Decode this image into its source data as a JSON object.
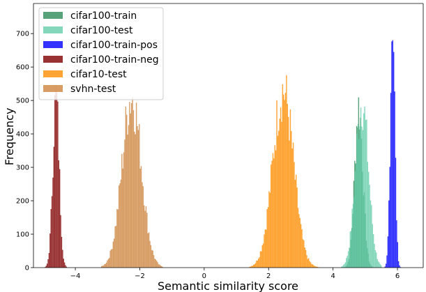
{
  "chart_data": {
    "type": "histogram",
    "xlabel": "Semantic similarity score",
    "ylabel": "Frequency",
    "xlim": [
      -5.3,
      6.8
    ],
    "ylim": [
      0,
      790
    ],
    "xticks": [
      -4,
      -2,
      0,
      2,
      4,
      6
    ],
    "yticks": [
      0,
      100,
      200,
      300,
      400,
      500,
      600,
      700
    ],
    "grid": false,
    "legend_position": "top-left",
    "series": [
      {
        "name": "cifar100-train",
        "color": "#2e8b57",
        "opacity": 0.8,
        "mean": 4.8,
        "std": 0.13,
        "peak": 480,
        "range": [
          4.3,
          5.3
        ]
      },
      {
        "name": "cifar100-test",
        "color": "#66cdaa",
        "opacity": 0.8,
        "mean": 4.9,
        "std": 0.2,
        "peak": 495,
        "range": [
          4.25,
          5.5
        ]
      },
      {
        "name": "cifar100-train-pos",
        "color": "#0000ff",
        "opacity": 0.8,
        "mean": 5.85,
        "std": 0.07,
        "peak": 760,
        "range": [
          5.6,
          6.2
        ]
      },
      {
        "name": "cifar100-train-neg",
        "color": "#800000",
        "opacity": 0.8,
        "mean": -4.6,
        "std": 0.1,
        "peak": 510,
        "range": [
          -4.95,
          -4.2
        ]
      },
      {
        "name": "cifar10-test",
        "color": "#ff8c00",
        "opacity": 0.8,
        "mean": 2.45,
        "std": 0.32,
        "peak": 530,
        "range": [
          1.4,
          3.6
        ]
      },
      {
        "name": "svhn-test",
        "color": "#cd853f",
        "opacity": 0.8,
        "mean": -2.25,
        "std": 0.3,
        "peak": 510,
        "range": [
          -3.2,
          -1.3
        ]
      }
    ]
  }
}
